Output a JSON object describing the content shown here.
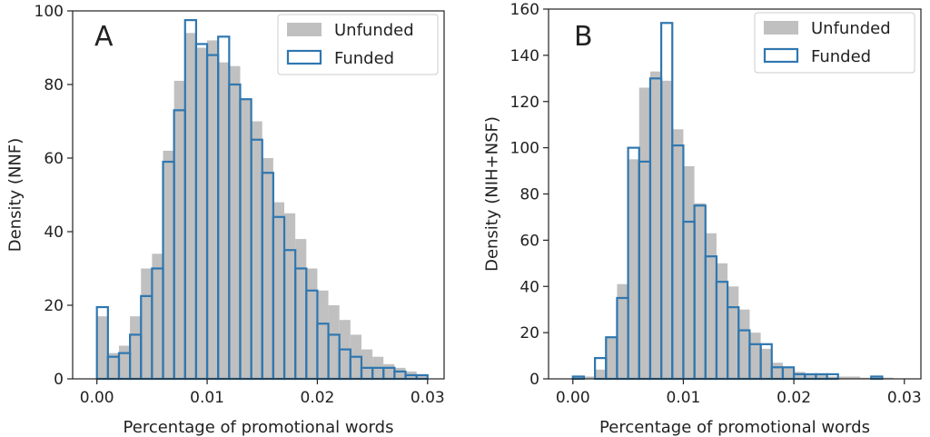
{
  "colors": {
    "unfunded": "#c0c0c0",
    "funded": "#2f77b0",
    "axis": "#222222"
  },
  "chart_data": [
    {
      "type": "bar",
      "title": "",
      "panel_letter": "A",
      "xlabel": "Percentage of promotional words",
      "ylabel": "Density (NNF)",
      "xlim": [
        -0.0022,
        0.0315
      ],
      "ylim": [
        0,
        100
      ],
      "xticks": [
        0.0,
        0.01,
        0.02,
        0.03
      ],
      "xtick_labels": [
        "0.00",
        "0.01",
        "0.02",
        "0.03"
      ],
      "yticks": [
        0,
        20,
        40,
        60,
        80,
        100
      ],
      "ytick_labels": [
        "0",
        "20",
        "40",
        "60",
        "80",
        "100"
      ],
      "bin_start": 0.0,
      "bin_width": 0.001,
      "legend_position": "top-right",
      "series": [
        {
          "name": "Unfunded",
          "style": "filled",
          "values": [
            17,
            7,
            9,
            17,
            30,
            34,
            62,
            81,
            94,
            90,
            92,
            86,
            85,
            76,
            70,
            60,
            48,
            45,
            38,
            30,
            24,
            20,
            16,
            12,
            8,
            6,
            4,
            3,
            2,
            1
          ]
        },
        {
          "name": "Funded",
          "style": "outline",
          "values": [
            19.5,
            6,
            7,
            12,
            22.5,
            30,
            59,
            73,
            97.5,
            91,
            88,
            93,
            80,
            76,
            65,
            56,
            44,
            35,
            30,
            24,
            15,
            12,
            8,
            6,
            3,
            3,
            3,
            2,
            1,
            1
          ]
        }
      ]
    },
    {
      "type": "bar",
      "title": "",
      "panel_letter": "B",
      "xlabel": "Percentage of promotional words",
      "ylabel": "Density (NIH+NSF)",
      "xlim": [
        -0.0022,
        0.0315
      ],
      "ylim": [
        0,
        160
      ],
      "xticks": [
        0.0,
        0.01,
        0.02,
        0.03
      ],
      "xtick_labels": [
        "0.00",
        "0.01",
        "0.02",
        "0.03"
      ],
      "yticks": [
        0,
        20,
        40,
        60,
        80,
        100,
        120,
        140,
        160
      ],
      "ytick_labels": [
        "0",
        "20",
        "40",
        "60",
        "80",
        "100",
        "120",
        "140",
        "160"
      ],
      "bin_start": 0.0,
      "bin_width": 0.001,
      "legend_position": "top-right",
      "series": [
        {
          "name": "Unfunded",
          "style": "filled",
          "values": [
            1,
            1,
            4,
            18,
            41,
            95,
            126,
            133,
            129,
            108,
            92,
            76,
            63,
            50,
            40,
            30,
            20,
            13,
            7,
            5,
            3,
            2,
            2,
            1,
            1,
            1,
            0.5,
            0.5,
            0.5,
            0
          ]
        },
        {
          "name": "Funded",
          "style": "outline",
          "values": [
            1,
            0,
            9,
            18,
            35,
            100,
            94,
            130,
            154,
            101,
            68,
            75,
            53,
            42,
            31,
            21,
            15,
            15,
            5,
            5,
            2,
            2,
            2,
            2,
            0,
            0,
            0,
            1,
            0,
            0
          ]
        }
      ]
    }
  ]
}
